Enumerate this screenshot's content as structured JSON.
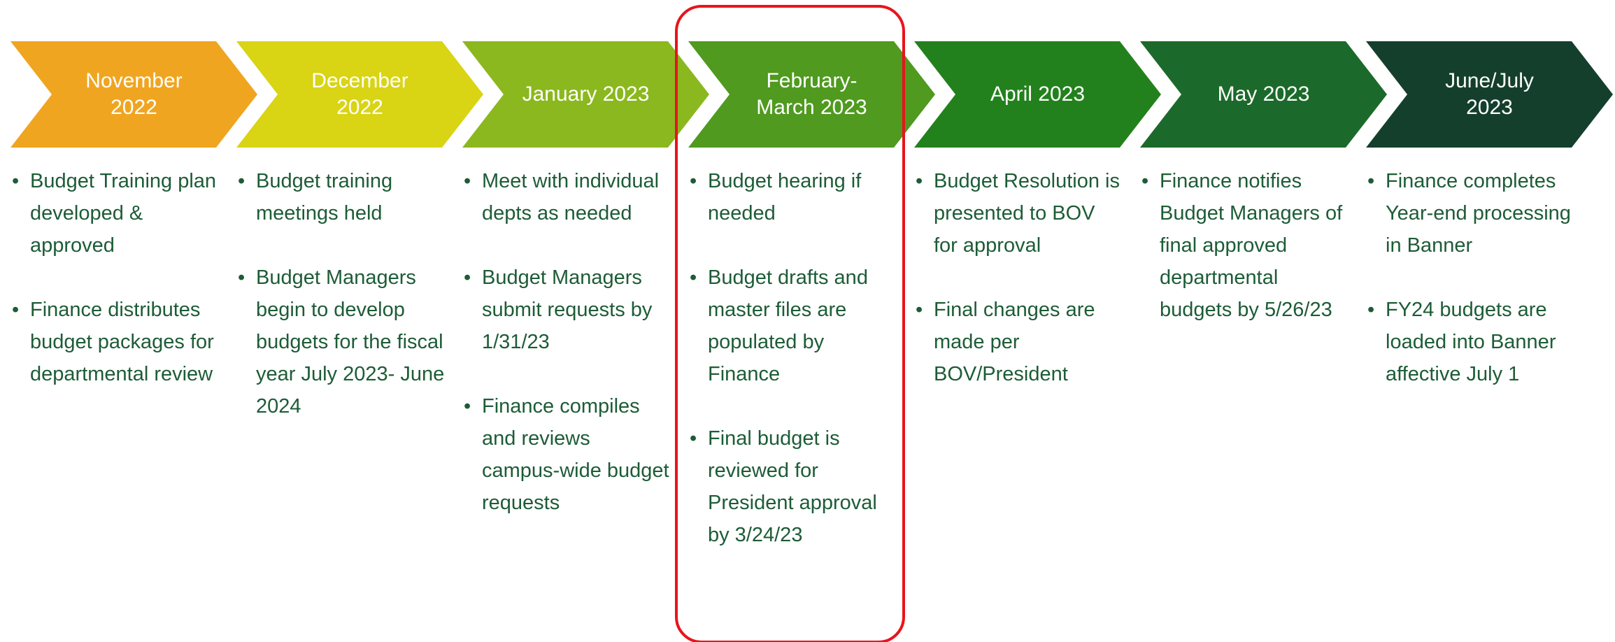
{
  "timeline": [
    {
      "header": "November 2022",
      "items": [
        "Budget Training plan developed & approved",
        "Finance distributes budget packages for departmental review"
      ]
    },
    {
      "header": "December 2022",
      "items": [
        "Budget training meetings held",
        "Budget Managers begin to develop budgets for the fiscal year July 2023- June 2024"
      ]
    },
    {
      "header": "January 2023",
      "items": [
        "Meet with individual depts as needed",
        "Budget Managers submit requests by 1/31/23",
        "Finance compiles and reviews campus-wide budget requests"
      ]
    },
    {
      "header": "February-March 2023",
      "items": [
        "Budget hearing if needed",
        "Budget drafts and master files are populated by Finance",
        "Final budget is reviewed for President approval by 3/24/23"
      ]
    },
    {
      "header": "April 2023",
      "items": [
        "Budget Resolution is presented to BOV for approval",
        "Final changes are made per BOV/President"
      ]
    },
    {
      "header": "May 2023",
      "items": [
        "Finance notifies Budget Managers of final approved departmental budgets by 5/26/23"
      ]
    },
    {
      "header": "June/July 2023",
      "items": [
        "Finance completes Year-end processing in Banner",
        "FY24 budgets are loaded into Banner affective July 1"
      ]
    }
  ]
}
